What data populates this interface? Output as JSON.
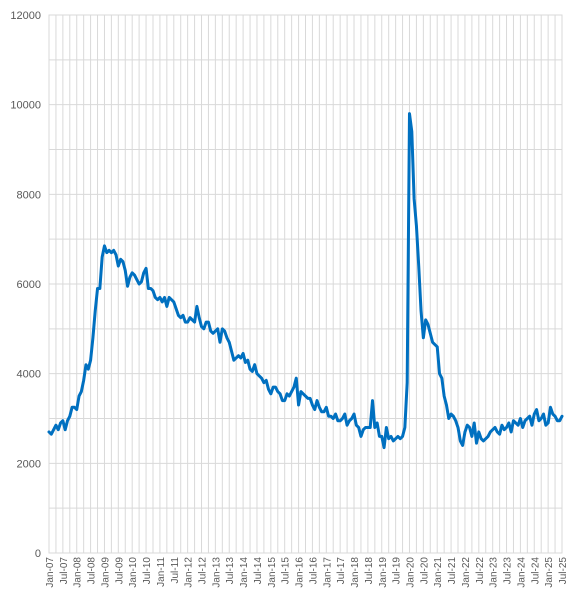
{
  "chart_data": {
    "type": "line",
    "title": "",
    "xlabel": "",
    "ylabel": "",
    "ylim": [
      0,
      12000
    ],
    "y_ticks": [
      0,
      2000,
      4000,
      6000,
      8000,
      10000,
      12000
    ],
    "y_tick_labels": [
      "0",
      "2000",
      "4000",
      "6000",
      "8000",
      "10000",
      "12000"
    ],
    "x_tick_labels": [
      "Jan-07",
      "Jul-07",
      "Jan-08",
      "Jul-08",
      "Jan-09",
      "Jul-09",
      "Jan-10",
      "Jul-10",
      "Jan-11",
      "Jul-11",
      "Jan-12",
      "Jul-12",
      "Jan-13",
      "Jul-13",
      "Jan-14",
      "Jul-14",
      "Jan-15",
      "Jul-15",
      "Jan-16",
      "Jul-16",
      "Jan-17",
      "Jul-17",
      "Jan-18",
      "Jul-18",
      "Jan-19",
      "Jul-19",
      "Jan-20",
      "Jul-20",
      "Jan-21",
      "Jul-21",
      "Jan-22",
      "Jul-22",
      "Jan-23",
      "Jul-23",
      "Jan-24",
      "Jul-24",
      "Jan-25",
      "Jul-25"
    ],
    "grid": true,
    "legend": false,
    "line_color": "#0070C0",
    "series": [
      {
        "x_start": "Jan-07",
        "frequency": "monthly",
        "values": [
          2700,
          2650,
          2750,
          2850,
          2750,
          2900,
          2950,
          2750,
          2950,
          3050,
          3250,
          3250,
          3200,
          3500,
          3600,
          3850,
          4200,
          4100,
          4300,
          4800,
          5400,
          5900,
          5900,
          6600,
          6850,
          6700,
          6750,
          6700,
          6750,
          6650,
          6400,
          6550,
          6500,
          6300,
          5950,
          6150,
          6250,
          6200,
          6100,
          6000,
          6050,
          6250,
          6350,
          5900,
          5900,
          5850,
          5700,
          5650,
          5700,
          5600,
          5700,
          5500,
          5700,
          5650,
          5600,
          5450,
          5300,
          5250,
          5300,
          5150,
          5150,
          5250,
          5200,
          5150,
          5500,
          5250,
          5050,
          5000,
          5150,
          5150,
          4950,
          4900,
          4950,
          5000,
          4700,
          5000,
          4950,
          4800,
          4700,
          4500,
          4300,
          4350,
          4400,
          4350,
          4450,
          4250,
          4300,
          4100,
          4050,
          4200,
          4000,
          3950,
          3900,
          3800,
          3850,
          3650,
          3550,
          3700,
          3700,
          3600,
          3550,
          3400,
          3400,
          3550,
          3500,
          3600,
          3700,
          3900,
          3300,
          3600,
          3550,
          3500,
          3450,
          3450,
          3300,
          3200,
          3400,
          3250,
          3150,
          3150,
          3250,
          3050,
          3050,
          3000,
          3100,
          2950,
          2950,
          3000,
          3100,
          2850,
          2950,
          3000,
          3100,
          2850,
          2800,
          2600,
          2750,
          2800,
          2800,
          2800,
          3400,
          2800,
          2900,
          2600,
          2600,
          2350,
          2800,
          2550,
          2600,
          2500,
          2550,
          2600,
          2550,
          2600,
          2800,
          3800,
          9800,
          9400,
          7900,
          7300,
          6400,
          5400,
          4800,
          5200,
          5100,
          4900,
          4700,
          4650,
          4600,
          4000,
          3900,
          3500,
          3300,
          3000,
          3100,
          3050,
          2950,
          2800,
          2500,
          2400,
          2700,
          2850,
          2800,
          2600,
          2900,
          2450,
          2700,
          2550,
          2500,
          2550,
          2600,
          2700,
          2750,
          2800,
          2700,
          2650,
          2850,
          2750,
          2800,
          2900,
          2700,
          2950,
          2900,
          2850,
          3000,
          2800,
          2950,
          3000,
          3050,
          2850,
          3100,
          3200,
          2950,
          3000,
          3100,
          2850,
          2900,
          3250,
          3100,
          3050,
          2950,
          2950,
          3050
        ]
      }
    ]
  }
}
